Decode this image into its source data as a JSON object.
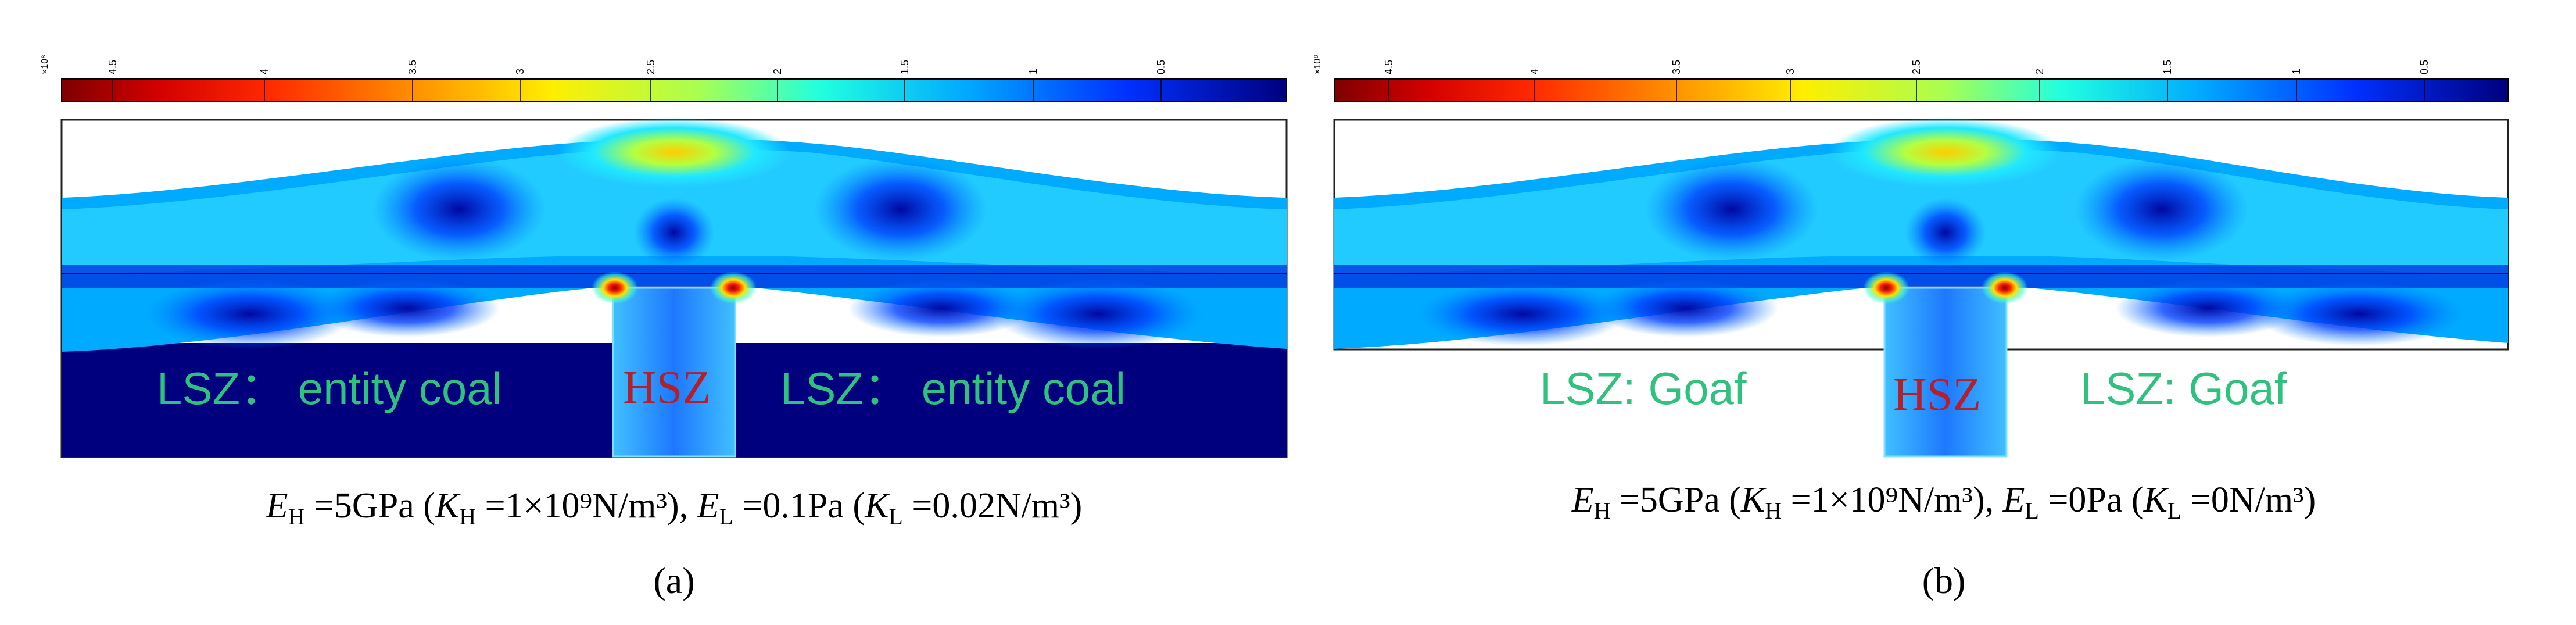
{
  "colors": {
    "dark_red": "#7f0000",
    "red": "#ff1a00",
    "orange": "#ff8000",
    "yellow": "#ffff00",
    "cyan": "#00ffff",
    "light_blue": "#00a0ff",
    "blue": "#0000ff",
    "dark_blue": "#00007f",
    "zone_green": "#2ec27e",
    "zone_red": "#b4202a"
  },
  "panels": [
    {
      "colorbar": {
        "multiplier": "×10⁸",
        "ticks": [
          "4.5",
          "4",
          "3.5",
          "3",
          "2.5",
          "2",
          "1.5",
          "1",
          "0.5"
        ]
      },
      "left_label": "LSZ： entity coal",
      "hsz_label": "HSZ",
      "right_label": "LSZ： entity coal",
      "caption": {
        "e_h": "E",
        "e_h_sub": "H",
        "e_h_val": " =5GPa (",
        "k_h": "K",
        "k_h_sub": "H",
        "k_h_val": " =1×10⁹N/m³), ",
        "e_l": "E",
        "e_l_sub": "L",
        "e_l_val": " =0.1Pa (",
        "k_l": "K",
        "k_l_sub": "L",
        "k_l_val": " =0.02N/m³)"
      },
      "label": "(a)"
    },
    {
      "colorbar": {
        "multiplier": "×10⁸",
        "ticks": [
          "4.5",
          "4",
          "3.5",
          "3",
          "2.5",
          "2",
          "1.5",
          "1",
          "0.5"
        ]
      },
      "left_label": "LSZ: Goaf",
      "hsz_label": "HSZ",
      "right_label": "LSZ: Goaf",
      "caption": {
        "e_h": "E",
        "e_h_sub": "H",
        "e_h_val": " =5GPa (",
        "k_h": "K",
        "k_h_sub": "H",
        "k_h_val": " =1×10⁹N/m³), ",
        "e_l": "E",
        "e_l_sub": "L",
        "e_l_val": " =0Pa (",
        "k_l": "K",
        "k_l_sub": "L",
        "k_l_val": " =0N/m³)"
      },
      "label": "(b)"
    }
  ]
}
